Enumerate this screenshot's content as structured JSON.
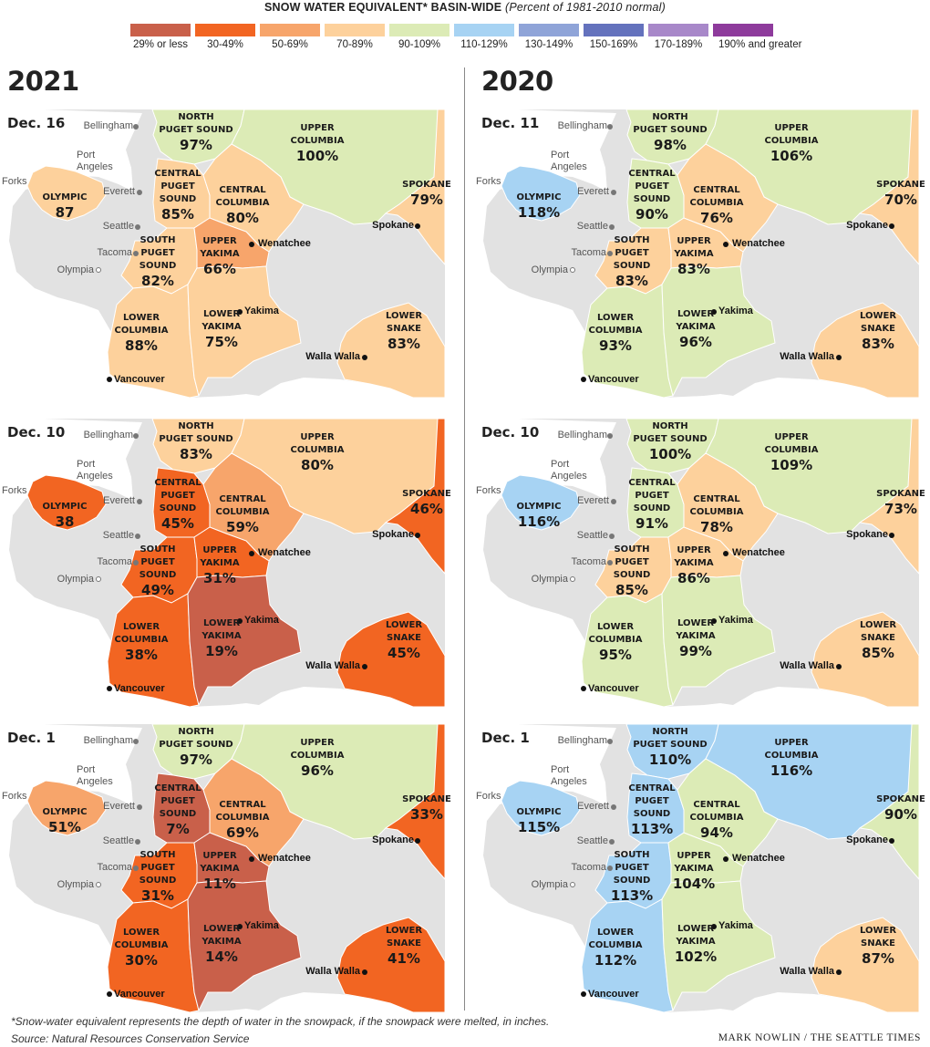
{
  "title": {
    "main": "SNOW WATER EQUIVALENT* BASIN-WIDE",
    "subtitle": "(Percent of 1981-2010 normal)"
  },
  "legend": [
    {
      "label": "29% or less",
      "color": "#c9604a"
    },
    {
      "label": "30-49%",
      "color": "#f26522"
    },
    {
      "label": "50-69%",
      "color": "#f7a56b"
    },
    {
      "label": "70-89%",
      "color": "#fdd19c"
    },
    {
      "label": "90-109%",
      "color": "#dcebb6"
    },
    {
      "label": "110-129%",
      "color": "#a7d3f3"
    },
    {
      "label": "130-149%",
      "color": "#8fa4d8"
    },
    {
      "label": "150-169%",
      "color": "#6472bd"
    },
    {
      "label": "170-189%",
      "color": "#a888c9"
    },
    {
      "label": "190% and greater",
      "color": "#8e3b9c"
    }
  ],
  "colors": {
    "land": "#e2e2e2",
    "border": "#ffffff"
  },
  "columns": [
    {
      "year": "2021",
      "maps": [
        {
          "date": "Dec. 16",
          "values": {
            "olympic": "87",
            "north_puget": "97%",
            "upper_columbia": "100%",
            "spokane": "79%",
            "central_puget": "85%",
            "central_columbia": "80%",
            "south_puget": "82%",
            "upper_yakima": "66%",
            "lower_columbia": "88%",
            "lower_yakima": "75%",
            "lower_snake": "83%"
          },
          "colors": {
            "olympic": "#fdd19c",
            "north_puget": "#dcebb6",
            "upper_columbia": "#dcebb6",
            "spokane": "#fdd19c",
            "central_puget": "#fdd19c",
            "central_columbia": "#fdd19c",
            "south_puget": "#fdd19c",
            "upper_yakima": "#f7a56b",
            "lower_columbia": "#fdd19c",
            "lower_yakima": "#fdd19c",
            "lower_snake": "#fdd19c"
          }
        },
        {
          "date": "Dec. 10",
          "values": {
            "olympic": "38",
            "north_puget": "83%",
            "upper_columbia": "80%",
            "spokane": "46%",
            "central_puget": "45%",
            "central_columbia": "59%",
            "south_puget": "49%",
            "upper_yakima": "31%",
            "lower_columbia": "38%",
            "lower_yakima": "19%",
            "lower_snake": "45%"
          },
          "colors": {
            "olympic": "#f26522",
            "north_puget": "#fdd19c",
            "upper_columbia": "#fdd19c",
            "spokane": "#f26522",
            "central_puget": "#f26522",
            "central_columbia": "#f7a56b",
            "south_puget": "#f26522",
            "upper_yakima": "#f26522",
            "lower_columbia": "#f26522",
            "lower_yakima": "#c9604a",
            "lower_snake": "#f26522"
          }
        },
        {
          "date": "Dec. 1",
          "values": {
            "olympic": "51%",
            "north_puget": "97%",
            "upper_columbia": "96%",
            "spokane": "33%",
            "central_puget": "7%",
            "central_columbia": "69%",
            "south_puget": "31%",
            "upper_yakima": "11%",
            "lower_columbia": "30%",
            "lower_yakima": "14%",
            "lower_snake": "41%"
          },
          "colors": {
            "olympic": "#f7a56b",
            "north_puget": "#dcebb6",
            "upper_columbia": "#dcebb6",
            "spokane": "#f26522",
            "central_puget": "#c9604a",
            "central_columbia": "#f7a56b",
            "south_puget": "#f26522",
            "upper_yakima": "#c9604a",
            "lower_columbia": "#f26522",
            "lower_yakima": "#c9604a",
            "lower_snake": "#f26522"
          }
        }
      ]
    },
    {
      "year": "2020",
      "maps": [
        {
          "date": "Dec. 11",
          "values": {
            "olympic": "118%",
            "north_puget": "98%",
            "upper_columbia": "106%",
            "spokane": "70%",
            "central_puget": "90%",
            "central_columbia": "76%",
            "south_puget": "83%",
            "upper_yakima": "83%",
            "lower_columbia": "93%",
            "lower_yakima": "96%",
            "lower_snake": "83%"
          },
          "colors": {
            "olympic": "#a7d3f3",
            "north_puget": "#dcebb6",
            "upper_columbia": "#dcebb6",
            "spokane": "#fdd19c",
            "central_puget": "#dcebb6",
            "central_columbia": "#fdd19c",
            "south_puget": "#fdd19c",
            "upper_yakima": "#fdd19c",
            "lower_columbia": "#dcebb6",
            "lower_yakima": "#dcebb6",
            "lower_snake": "#fdd19c"
          }
        },
        {
          "date": "Dec. 10",
          "values": {
            "olympic": "116%",
            "north_puget": "100%",
            "upper_columbia": "109%",
            "spokane": "73%",
            "central_puget": "91%",
            "central_columbia": "78%",
            "south_puget": "85%",
            "upper_yakima": "86%",
            "lower_columbia": "95%",
            "lower_yakima": "99%",
            "lower_snake": "85%"
          },
          "colors": {
            "olympic": "#a7d3f3",
            "north_puget": "#dcebb6",
            "upper_columbia": "#dcebb6",
            "spokane": "#fdd19c",
            "central_puget": "#dcebb6",
            "central_columbia": "#fdd19c",
            "south_puget": "#fdd19c",
            "upper_yakima": "#fdd19c",
            "lower_columbia": "#dcebb6",
            "lower_yakima": "#dcebb6",
            "lower_snake": "#fdd19c"
          }
        },
        {
          "date": "Dec. 1",
          "values": {
            "olympic": "115%",
            "north_puget": "110%",
            "upper_columbia": "116%",
            "spokane": "90%",
            "central_puget": "113%",
            "central_columbia": "94%",
            "south_puget": "113%",
            "upper_yakima": "104%",
            "lower_columbia": "112%",
            "lower_yakima": "102%",
            "lower_snake": "87%"
          },
          "colors": {
            "olympic": "#a7d3f3",
            "north_puget": "#a7d3f3",
            "upper_columbia": "#a7d3f3",
            "spokane": "#dcebb6",
            "central_puget": "#a7d3f3",
            "central_columbia": "#dcebb6",
            "south_puget": "#a7d3f3",
            "upper_yakima": "#dcebb6",
            "lower_columbia": "#a7d3f3",
            "lower_yakima": "#dcebb6",
            "lower_snake": "#fdd19c"
          }
        }
      ]
    }
  ],
  "basin_names": {
    "olympic": "OLYMPIC",
    "north_puget": "NORTH\nPUGET SOUND",
    "upper_columbia": "UPPER\nCOLUMBIA",
    "spokane": "SPOKANE",
    "central_puget": "CENTRAL\nPUGET\nSOUND",
    "central_columbia": "CENTRAL\nCOLUMBIA",
    "south_puget": "SOUTH\nPUGET\nSOUND",
    "upper_yakima": "UPPER\nYAKIMA",
    "lower_columbia": "LOWER\nCOLUMBIA",
    "lower_yakima": "LOWER\nYAKIMA",
    "lower_snake": "LOWER\nSNAKE"
  },
  "cities": {
    "bellingham": "Bellingham",
    "port_angeles": "Port\nAngeles",
    "forks": "Forks",
    "everett": "Everett",
    "seattle": "Seattle",
    "tacoma": "Tacoma",
    "olympia": "Olympia",
    "wenatchee": "Wenatchee",
    "spokane": "Spokane",
    "yakima": "Yakima",
    "walla_walla": "Walla Walla",
    "vancouver": "Vancouver"
  },
  "footnote": "*Snow-water equivalent represents the depth of water in the snowpack, if the snowpack were melted, in inches.",
  "source": "Source: Natural Resources Conservation Service",
  "credit": "MARK NOWLIN / THE SEATTLE TIMES"
}
